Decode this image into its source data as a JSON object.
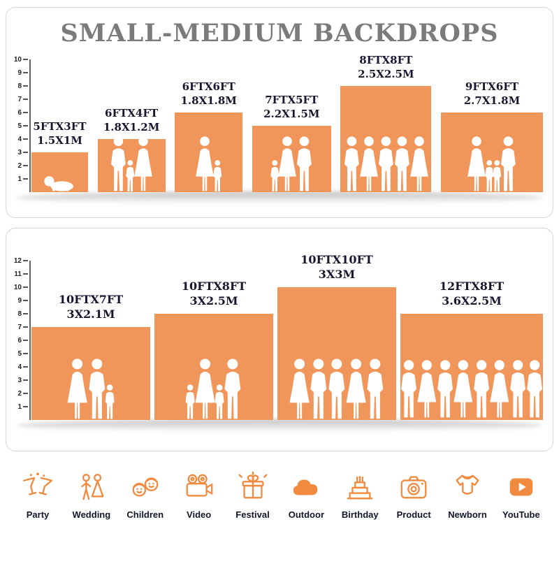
{
  "title": "SMALL-MEDIUM BACKDROPS",
  "colors": {
    "bar_orange": "#F0965B",
    "title_gray": "#7B7B7B",
    "label_dark": "#17172F",
    "icon_orange": "#F08A3E"
  },
  "chart_data": [
    {
      "type": "bar",
      "panel": "top",
      "title": "SMALL-MEDIUM BACKDROPS",
      "axis_max": 10,
      "axis_unit": "ft",
      "ylim": [
        0,
        10
      ],
      "bars": [
        {
          "label_ft": "5FTX3FT",
          "label_m": "1.5X1M",
          "width_ft": 5,
          "height_ft": 3,
          "figures": [
            "baby"
          ]
        },
        {
          "label_ft": "6FTX4FT",
          "label_m": "1.8X1.2M",
          "width_ft": 6,
          "height_ft": 4,
          "figures": [
            "adult-m",
            "child",
            "adult-f"
          ]
        },
        {
          "label_ft": "6FTX6FT",
          "label_m": "1.8X1.8M",
          "width_ft": 6,
          "height_ft": 6,
          "figures": [
            "adult-f",
            "child"
          ]
        },
        {
          "label_ft": "7FTX5FT",
          "label_m": "2.2X1.5M",
          "width_ft": 7,
          "height_ft": 5,
          "figures": [
            "child",
            "adult-f",
            "adult-m"
          ]
        },
        {
          "label_ft": "8FTX8FT",
          "label_m": "2.5X2.5M",
          "width_ft": 8,
          "height_ft": 8,
          "figures": [
            "adult-m",
            "adult-f",
            "adult-m",
            "adult-m",
            "adult-f"
          ]
        },
        {
          "label_ft": "9FTX6FT",
          "label_m": "2.7X1.8M",
          "width_ft": 9,
          "height_ft": 6,
          "figures": [
            "adult-f",
            "child",
            "child",
            "adult-m"
          ]
        }
      ]
    },
    {
      "type": "bar",
      "panel": "bottom",
      "axis_max": 12,
      "axis_unit": "ft",
      "ylim": [
        0,
        12
      ],
      "bars": [
        {
          "label_ft": "10FTX7FT",
          "label_m": "3X2.1M",
          "width_ft": 10,
          "height_ft": 7,
          "figures": [
            "adult-f",
            "adult-m",
            "child"
          ]
        },
        {
          "label_ft": "10FTX8FT",
          "label_m": "3X2.5M",
          "width_ft": 10,
          "height_ft": 8,
          "figures": [
            "child",
            "adult-f",
            "child",
            "adult-m"
          ]
        },
        {
          "label_ft": "10FTX10FT",
          "label_m": "3X3M",
          "width_ft": 10,
          "height_ft": 10,
          "figures": [
            "adult-f",
            "adult-m",
            "adult-m",
            "adult-f",
            "adult-m"
          ]
        },
        {
          "label_ft": "12FTX8FT",
          "label_m": "3.6X2.5M",
          "width_ft": 12,
          "height_ft": 8,
          "figures": [
            "adult-m",
            "adult-f",
            "adult-m",
            "adult-f",
            "adult-m",
            "adult-f",
            "adult-m",
            "adult-m"
          ]
        }
      ]
    }
  ],
  "categories": [
    {
      "name": "party",
      "label": "Party"
    },
    {
      "name": "wedding",
      "label": "Wedding"
    },
    {
      "name": "children",
      "label": "Children"
    },
    {
      "name": "video",
      "label": "Video"
    },
    {
      "name": "festival",
      "label": "Festival"
    },
    {
      "name": "outdoor",
      "label": "Outdoor"
    },
    {
      "name": "birthday",
      "label": "Birthday"
    },
    {
      "name": "product",
      "label": "Product"
    },
    {
      "name": "newborn",
      "label": "Newborn"
    },
    {
      "name": "youtube",
      "label": "YouTube"
    }
  ]
}
